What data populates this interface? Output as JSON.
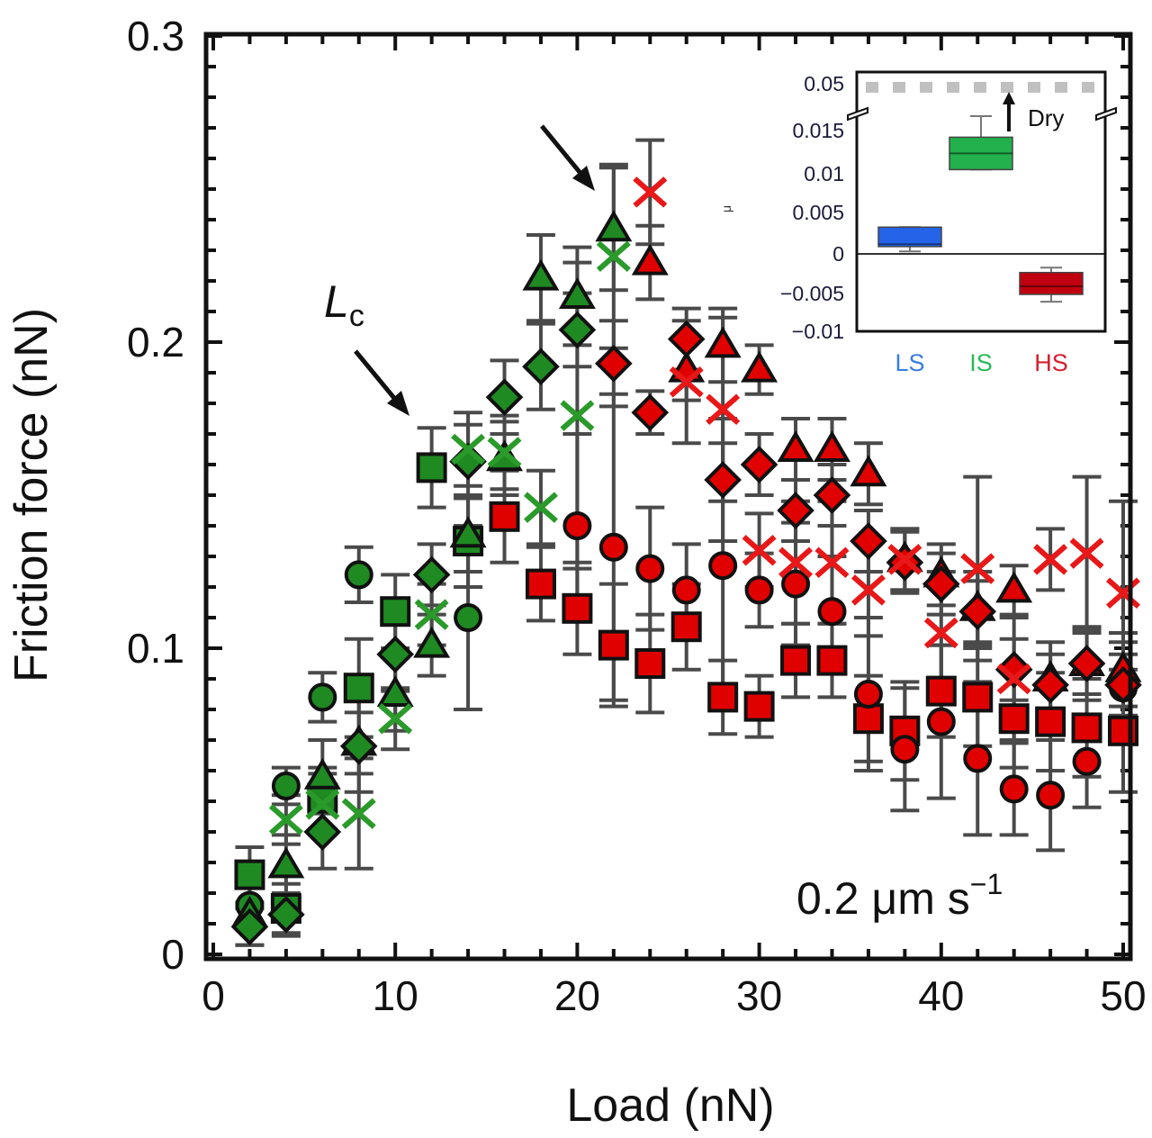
{
  "chart_data": {
    "type": "scatter",
    "xlabel": "Load (nN)",
    "ylabel": "Friction force (nN)",
    "xlim": [
      0,
      50
    ],
    "ylim": [
      0,
      0.3
    ],
    "xticks": [
      "0",
      "10",
      "20",
      "30",
      "40",
      "50"
    ],
    "yticks": [
      "0",
      "0.1",
      "0.2",
      "0.3"
    ],
    "grid": false,
    "colors": {
      "g": "#1f8a22",
      "r": "#e00000",
      "error_bar": "#4a4a4a"
    },
    "annotations": {
      "lc_main": "L",
      "lc_sub": "c",
      "speed": "0.2 μm s",
      "speed_exp": "−1"
    },
    "series": [
      {
        "marker": "square",
        "points": [
          [
            2,
            0.026,
            0.009,
            "g"
          ],
          [
            4,
            0.015,
            0.008,
            "g"
          ],
          [
            6,
            0.051,
            0.01,
            "g"
          ],
          [
            8,
            0.087,
            0.016,
            "g"
          ],
          [
            10,
            0.112,
            0.012,
            "g"
          ],
          [
            12,
            0.159,
            0.013,
            "g"
          ],
          [
            14,
            0.135,
            0.015,
            "g"
          ],
          [
            16,
            0.143,
            0.015,
            "r"
          ],
          [
            18,
            0.121,
            0.012,
            "r"
          ],
          [
            20,
            0.113,
            0.015,
            "r"
          ],
          [
            22,
            0.101,
            0.02,
            "r"
          ],
          [
            24,
            0.095,
            0.016,
            "r"
          ],
          [
            26,
            0.107,
            0.014,
            "r"
          ],
          [
            28,
            0.084,
            0.012,
            "r"
          ],
          [
            30,
            0.081,
            0.01,
            "r"
          ],
          [
            32,
            0.096,
            0.012,
            "r"
          ],
          [
            34,
            0.096,
            0.012,
            "r"
          ],
          [
            36,
            0.077,
            0.014,
            "r"
          ],
          [
            38,
            0.073,
            0.016,
            "r"
          ],
          [
            40,
            0.086,
            0.015,
            "r"
          ],
          [
            42,
            0.084,
            0.016,
            "r"
          ],
          [
            44,
            0.077,
            0.016,
            "r"
          ],
          [
            46,
            0.076,
            0.016,
            "r"
          ],
          [
            48,
            0.074,
            0.016,
            "r"
          ],
          [
            50,
            0.073,
            0.02,
            "r"
          ]
        ]
      },
      {
        "marker": "circle",
        "points": [
          [
            2,
            0.016,
            0.008,
            "g"
          ],
          [
            4,
            0.055,
            0.006,
            "g"
          ],
          [
            6,
            0.084,
            0.008,
            "g"
          ],
          [
            8,
            0.124,
            0.009,
            "g"
          ],
          [
            14,
            0.11,
            0.03,
            "g"
          ],
          [
            20,
            0.14,
            0.03,
            "r"
          ],
          [
            22,
            0.133,
            0.05,
            "r"
          ],
          [
            24,
            0.126,
            0.02,
            "r"
          ],
          [
            26,
            0.119,
            0.015,
            "r"
          ],
          [
            28,
            0.127,
            0.04,
            "r"
          ],
          [
            30,
            0.119,
            0.012,
            "r"
          ],
          [
            32,
            0.121,
            0.02,
            "r"
          ],
          [
            34,
            0.112,
            0.018,
            "r"
          ],
          [
            36,
            0.085,
            0.025,
            "r"
          ],
          [
            38,
            0.067,
            0.02,
            "r"
          ],
          [
            40,
            0.076,
            0.025,
            "r"
          ],
          [
            42,
            0.064,
            0.025,
            "r"
          ],
          [
            44,
            0.054,
            0.015,
            "r"
          ],
          [
            46,
            0.052,
            0.018,
            "r"
          ],
          [
            48,
            0.063,
            0.015,
            "r"
          ],
          [
            50,
            0.087,
            0.015,
            "r"
          ]
        ]
      },
      {
        "marker": "triangle",
        "points": [
          [
            2,
            0.013,
            0.01,
            "g"
          ],
          [
            4,
            0.029,
            0.01,
            "g"
          ],
          [
            6,
            0.058,
            0.012,
            "g"
          ],
          [
            8,
            0.069,
            0.01,
            "g"
          ],
          [
            10,
            0.085,
            0.012,
            "g"
          ],
          [
            12,
            0.101,
            0.01,
            "g"
          ],
          [
            14,
            0.137,
            0.012,
            "g"
          ],
          [
            16,
            0.162,
            0.012,
            "g"
          ],
          [
            18,
            0.221,
            0.014,
            "g"
          ],
          [
            20,
            0.215,
            0.016,
            "g"
          ],
          [
            22,
            0.237,
            0.02,
            "g"
          ],
          [
            24,
            0.226,
            0.012,
            "r"
          ],
          [
            26,
            0.191,
            0.01,
            "r"
          ],
          [
            28,
            0.199,
            0.012,
            "r"
          ],
          [
            30,
            0.191,
            0.008,
            "r"
          ],
          [
            32,
            0.165,
            0.01,
            "r"
          ],
          [
            34,
            0.165,
            0.01,
            "r"
          ],
          [
            36,
            0.157,
            0.01,
            "r"
          ],
          [
            38,
            0.129,
            0.01,
            "r"
          ],
          [
            40,
            0.124,
            0.01,
            "r"
          ],
          [
            42,
            0.113,
            0.012,
            "r"
          ],
          [
            44,
            0.119,
            0.008,
            "r"
          ],
          [
            46,
            0.09,
            0.012,
            "r"
          ],
          [
            48,
            0.095,
            0.012,
            "r"
          ],
          [
            50,
            0.093,
            0.012,
            "r"
          ]
        ]
      },
      {
        "marker": "diamond",
        "points": [
          [
            2,
            0.009,
            0.006,
            "g"
          ],
          [
            4,
            0.013,
            0.007,
            "g"
          ],
          [
            6,
            0.04,
            0.012,
            "g"
          ],
          [
            8,
            0.068,
            0.015,
            "g"
          ],
          [
            10,
            0.098,
            0.012,
            "g"
          ],
          [
            12,
            0.124,
            0.01,
            "g"
          ],
          [
            14,
            0.161,
            0.012,
            "g"
          ],
          [
            16,
            0.182,
            0.012,
            "g"
          ],
          [
            18,
            0.192,
            0.014,
            "g"
          ],
          [
            20,
            0.204,
            0.012,
            "g"
          ],
          [
            22,
            0.193,
            0.014,
            "r"
          ],
          [
            24,
            0.177,
            0.007,
            "r"
          ],
          [
            26,
            0.201,
            0.01,
            "r"
          ],
          [
            28,
            0.155,
            0.02,
            "r"
          ],
          [
            30,
            0.16,
            0.01,
            "r"
          ],
          [
            32,
            0.145,
            0.01,
            "r"
          ],
          [
            34,
            0.15,
            0.01,
            "r"
          ],
          [
            36,
            0.135,
            0.01,
            "r"
          ],
          [
            38,
            0.128,
            0.01,
            "r"
          ],
          [
            40,
            0.121,
            0.01,
            "r"
          ],
          [
            42,
            0.112,
            0.01,
            "r"
          ],
          [
            44,
            0.093,
            0.01,
            "r"
          ],
          [
            46,
            0.088,
            0.01,
            "r"
          ],
          [
            48,
            0.095,
            0.01,
            "r"
          ],
          [
            50,
            0.088,
            0.01,
            "r"
          ]
        ]
      },
      {
        "marker": "cross",
        "points": [
          [
            4,
            0.044,
            0.008,
            "g"
          ],
          [
            6,
            0.049,
            0.01,
            "g"
          ],
          [
            8,
            0.046,
            0.018,
            "g"
          ],
          [
            10,
            0.077,
            0.01,
            "g"
          ],
          [
            12,
            0.111,
            0.01,
            "g"
          ],
          [
            14,
            0.165,
            0.012,
            "g"
          ],
          [
            16,
            0.164,
            0.012,
            "g"
          ],
          [
            18,
            0.146,
            0.012,
            "g"
          ],
          [
            20,
            0.176,
            0.05,
            "g"
          ],
          [
            22,
            0.228,
            0.03,
            "g"
          ],
          [
            24,
            0.249,
            0.017,
            "r"
          ],
          [
            26,
            0.187,
            0.02,
            "r"
          ],
          [
            28,
            0.178,
            0.03,
            "r"
          ],
          [
            30,
            0.132,
            0.012,
            "r"
          ],
          [
            32,
            0.128,
            0.02,
            "r"
          ],
          [
            34,
            0.128,
            0.02,
            "r"
          ],
          [
            36,
            0.119,
            0.015,
            "r"
          ],
          [
            38,
            0.129,
            0.01,
            "r"
          ],
          [
            40,
            0.105,
            0.02,
            "r"
          ],
          [
            42,
            0.126,
            0.03,
            "r"
          ],
          [
            44,
            0.09,
            0.02,
            "r"
          ],
          [
            46,
            0.129,
            0.01,
            "r"
          ],
          [
            48,
            0.131,
            0.025,
            "r"
          ],
          [
            50,
            0.118,
            0.03,
            "r"
          ]
        ]
      }
    ],
    "inset": {
      "type": "box",
      "ylabel": "μ",
      "yticks": [
        "0.05",
        "0.015",
        "0.01",
        "0.005",
        "0",
        "−0.005",
        "−0.01"
      ],
      "categories": [
        "LS",
        "IS",
        "HS"
      ],
      "category_colors": [
        "#3a7de0",
        "#2ab85a",
        "#d42030"
      ],
      "box_colors": [
        "#2563e8",
        "#22b14c",
        "#c00010"
      ],
      "boxes": [
        {
          "category": "LS",
          "q1": 0.0009,
          "median": 0.0012,
          "q3": 0.0033,
          "whisker_low": 0.0003,
          "whisker_high": 0.0033
        },
        {
          "category": "IS",
          "q1": 0.0104,
          "median": 0.0124,
          "q3": 0.0144,
          "whisker_low": 0.0104,
          "whisker_high": 0.017
        },
        {
          "category": "HS",
          "q1": -0.005,
          "median": -0.004,
          "q3": -0.0023,
          "whisker_low": -0.0059,
          "whisker_high": -0.0017
        }
      ],
      "reference_line": {
        "label": "Dry",
        "value": 0.05,
        "color": "#c0c0c0"
      }
    }
  }
}
